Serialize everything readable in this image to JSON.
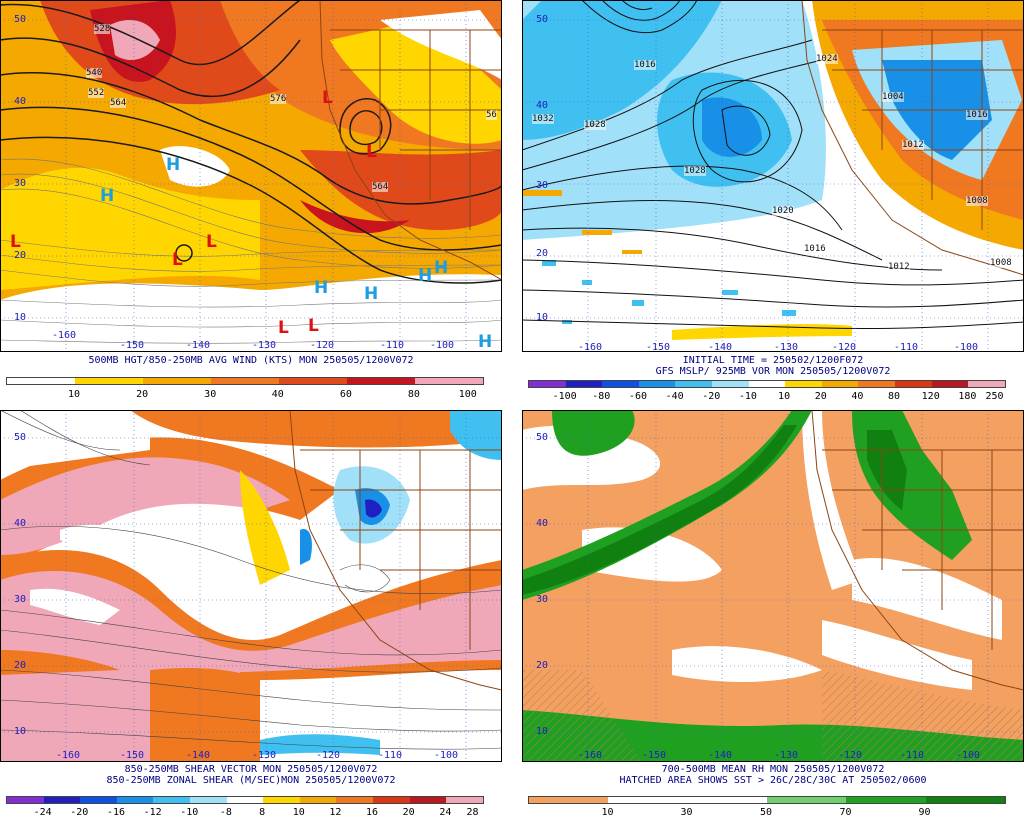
{
  "panels": {
    "top_left": {
      "caption": "500MB HGT/850-250MB AVG WIND (KTS) MON 250505/1200V072",
      "colorbar_ticks": [
        "10",
        "20",
        "30",
        "40",
        "60",
        "80",
        "100"
      ],
      "colors": [
        "#ffffff",
        "#ffd600",
        "#f5a800",
        "#f07820",
        "#e04a1a",
        "#c8141e",
        "#f0a8b8"
      ],
      "lat_labels": [
        "50",
        "40",
        "30",
        "20",
        "10"
      ],
      "lon_labels": [
        "-160",
        "-150",
        "-140",
        "-130",
        "-120",
        "-110",
        "-100"
      ],
      "height_labels": [
        "528",
        "540",
        "552",
        "564",
        "576",
        "564",
        "56"
      ],
      "symbols": [
        "L",
        "L",
        "L",
        "L",
        "L",
        "L",
        "L",
        "H",
        "H",
        "H",
        "H",
        "H",
        "H",
        "H"
      ]
    },
    "top_right": {
      "caption_line1": "INITIAL TIME = 250502/1200F072",
      "caption_line2": "GFS MSLP/ 925MB VOR MON 250505/1200V072",
      "colorbar_ticks": [
        "-100",
        "-80",
        "-60",
        "-40",
        "-20",
        "-10",
        "10",
        "20",
        "40",
        "80",
        "120",
        "180",
        "250"
      ],
      "colors": [
        "#8030d0",
        "#2020c0",
        "#1050e0",
        "#1890e8",
        "#40c0f0",
        "#a0e0f8",
        "#ffffff",
        "#ffd600",
        "#f5a800",
        "#f07820",
        "#d83818",
        "#b81820",
        "#f0a8b8"
      ],
      "lat_labels": [
        "50",
        "40",
        "30",
        "20",
        "10"
      ],
      "lon_labels": [
        "-160",
        "-150",
        "-140",
        "-130",
        "-120",
        "-110",
        "-100"
      ],
      "isobar_labels": [
        "1032",
        "1028",
        "1028",
        "1020",
        "1016",
        "1012",
        "1024",
        "1016",
        "1004",
        "1012",
        "1016",
        "1008",
        "1008"
      ]
    },
    "bottom_left": {
      "caption_line1": "850-250MB SHEAR VECTOR MON 250505/1200V072",
      "caption_line2": "850-250MB ZONAL SHEAR (M/SEC)MON 250505/1200V072",
      "colorbar_ticks": [
        "-24",
        "-20",
        "-16",
        "-12",
        "-10",
        "-8",
        "8",
        "10",
        "12",
        "16",
        "20",
        "24",
        "28"
      ],
      "colors": [
        "#8030d0",
        "#2020c0",
        "#1050e0",
        "#1890e8",
        "#40c0f0",
        "#a0e0f8",
        "#ffffff",
        "#ffd600",
        "#f5a800",
        "#f07820",
        "#d83818",
        "#b81820",
        "#f0a8b8"
      ],
      "lat_labels": [
        "50",
        "40",
        "30",
        "20",
        "10"
      ],
      "lon_labels": [
        "-160",
        "-150",
        "-140",
        "-130",
        "-120",
        "-110",
        "-100"
      ]
    },
    "bottom_right": {
      "caption_line1": "700-500MB MEAN RH MON 250505/1200V072",
      "caption_line2": "HATCHED AREA SHOWS SST > 26C/28C/30C AT 250502/0600",
      "colorbar_ticks": [
        "10",
        "30",
        "50",
        "70",
        "90"
      ],
      "colors": [
        "#f4a060",
        "#ffffff",
        "#ffffff",
        "#70d070",
        "#20a020",
        "#108010"
      ],
      "lat_labels": [
        "50",
        "40",
        "30",
        "20",
        "10"
      ],
      "lon_labels": [
        "-160",
        "-150",
        "-140",
        "-130",
        "-120",
        "-110",
        "-100"
      ]
    }
  }
}
